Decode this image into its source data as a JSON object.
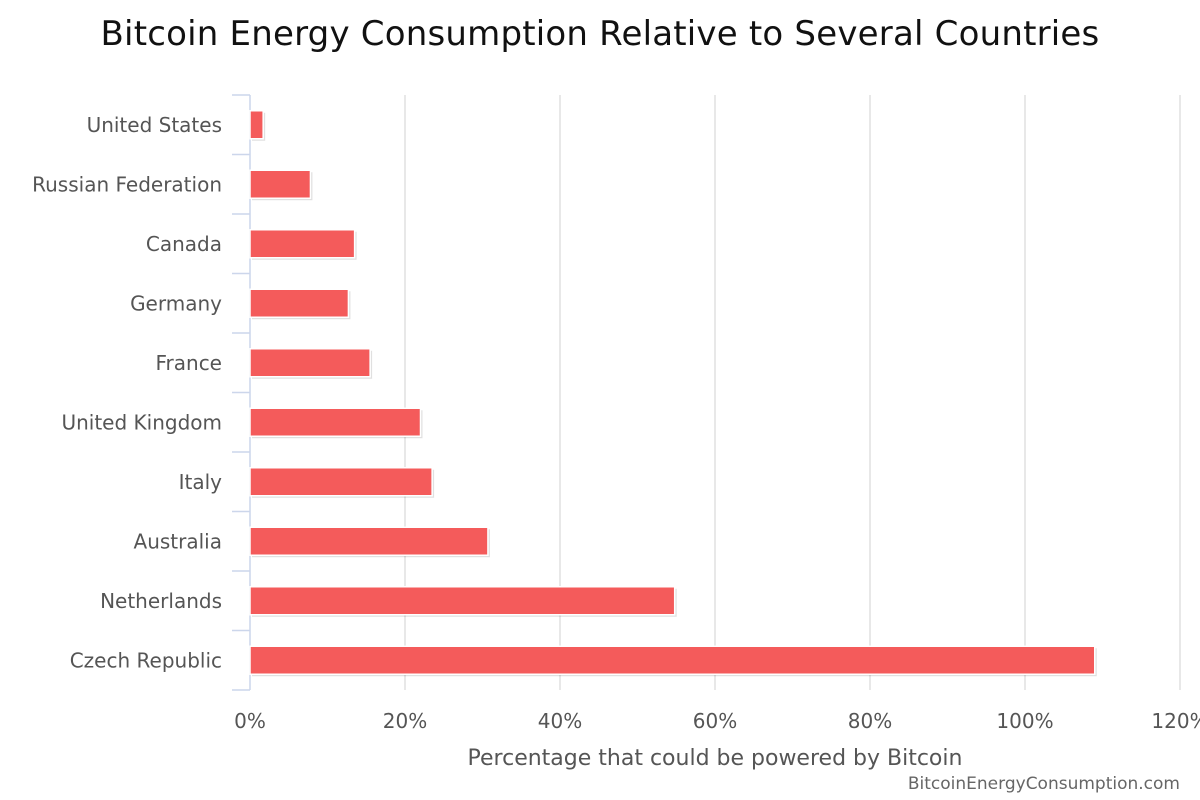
{
  "chart_data": {
    "type": "bar",
    "orientation": "horizontal",
    "title": "Bitcoin Energy Consumption Relative to Several Countries",
    "xlabel": "Percentage that could be powered by Bitcoin",
    "ylabel": "",
    "categories": [
      "United States",
      "Russian Federation",
      "Canada",
      "Germany",
      "France",
      "United Kingdom",
      "Italy",
      "Australia",
      "Netherlands",
      "Czech Republic"
    ],
    "values": [
      1.7,
      7.8,
      13.5,
      12.7,
      15.5,
      22.0,
      23.5,
      30.7,
      54.8,
      109.0
    ],
    "xlim": [
      0,
      120
    ],
    "xticks": [
      0,
      20,
      40,
      60,
      80,
      100,
      120
    ],
    "tick_labels": [
      "0%",
      "20%",
      "40%",
      "60%",
      "80%",
      "100%",
      "120%"
    ],
    "bar_color": "#f45b5b",
    "grid": true,
    "credit": "BitcoinEnergyConsumption.com"
  }
}
